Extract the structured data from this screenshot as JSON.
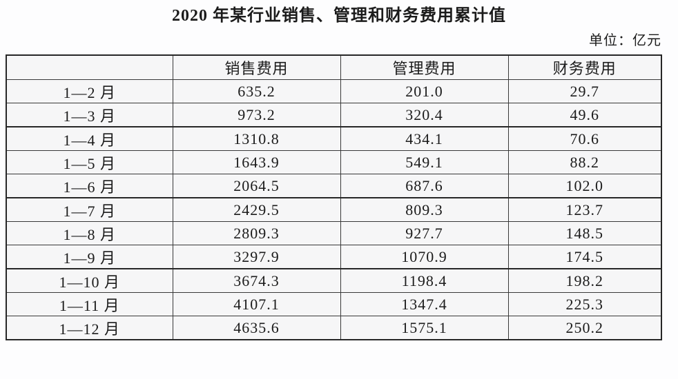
{
  "title": "2020 年某行业销售、管理和财务费用累计值",
  "unit_label": "单位：亿元",
  "table": {
    "corner": "",
    "headers": [
      "销售费用",
      "管理费用",
      "财务费用"
    ],
    "rows": [
      {
        "period": "1—2 月",
        "sales": "635.2",
        "management": "201.0",
        "finance": "29.7"
      },
      {
        "period": "1—3 月",
        "sales": "973.2",
        "management": "320.4",
        "finance": "49.6"
      },
      {
        "period": "1—4 月",
        "sales": "1310.8",
        "management": "434.1",
        "finance": "70.6"
      },
      {
        "period": "1—5 月",
        "sales": "1643.9",
        "management": "549.1",
        "finance": "88.2"
      },
      {
        "period": "1—6 月",
        "sales": "2064.5",
        "management": "687.6",
        "finance": "102.0"
      },
      {
        "period": "1—7 月",
        "sales": "2429.5",
        "management": "809.3",
        "finance": "123.7"
      },
      {
        "period": "1—8 月",
        "sales": "2809.3",
        "management": "927.7",
        "finance": "148.5"
      },
      {
        "period": "1—9 月",
        "sales": "3297.9",
        "management": "1070.9",
        "finance": "174.5"
      },
      {
        "period": "1—10 月",
        "sales": "3674.3",
        "management": "1198.4",
        "finance": "198.2"
      },
      {
        "period": "1—11 月",
        "sales": "4107.1",
        "management": "1347.4",
        "finance": "225.3"
      },
      {
        "period": "1—12 月",
        "sales": "4635.6",
        "management": "1575.1",
        "finance": "250.2"
      }
    ]
  },
  "chart_data": {
    "type": "table",
    "title": "2020 年某行业销售、管理和财务费用累计值",
    "unit": "亿元",
    "categories": [
      "1—2 月",
      "1—3 月",
      "1—4 月",
      "1—5 月",
      "1—6 月",
      "1—7 月",
      "1—8 月",
      "1—9 月",
      "1—10 月",
      "1—11 月",
      "1—12 月"
    ],
    "series": [
      {
        "name": "销售费用",
        "values": [
          635.2,
          973.2,
          1310.8,
          1643.9,
          2064.5,
          2429.5,
          2809.3,
          3297.9,
          3674.3,
          4107.1,
          4635.6
        ]
      },
      {
        "name": "管理费用",
        "values": [
          201.0,
          320.4,
          434.1,
          549.1,
          687.6,
          809.3,
          927.7,
          1070.9,
          1198.4,
          1347.4,
          1575.1
        ]
      },
      {
        "name": "财务费用",
        "values": [
          29.7,
          49.6,
          70.6,
          88.2,
          102.0,
          123.7,
          148.5,
          174.5,
          198.2,
          225.3,
          250.2
        ]
      }
    ]
  }
}
